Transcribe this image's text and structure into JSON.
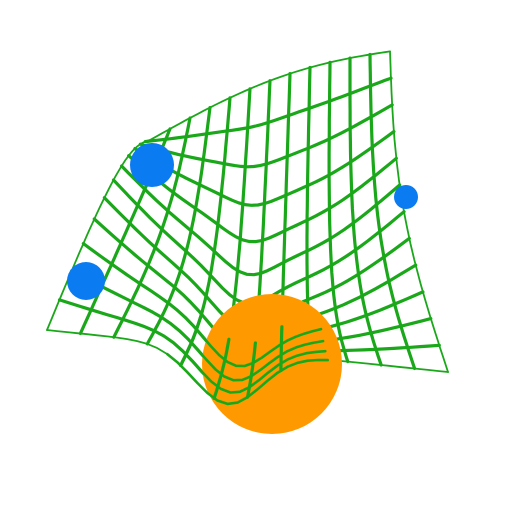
{
  "colors": {
    "background": "#ffffff",
    "mesh": "#1aa81a",
    "large_sphere": "#ff9900",
    "small_spheres": "#0a7bf0"
  },
  "mesh": {
    "shape": "saddle-like warped grid surface",
    "rows": 12,
    "cols": 12
  },
  "objects": [
    {
      "kind": "sphere",
      "color": "orange",
      "size": "large"
    },
    {
      "kind": "sphere",
      "color": "blue",
      "size": "small"
    },
    {
      "kind": "sphere",
      "color": "blue",
      "size": "small"
    },
    {
      "kind": "sphere",
      "color": "blue",
      "size": "small"
    }
  ]
}
